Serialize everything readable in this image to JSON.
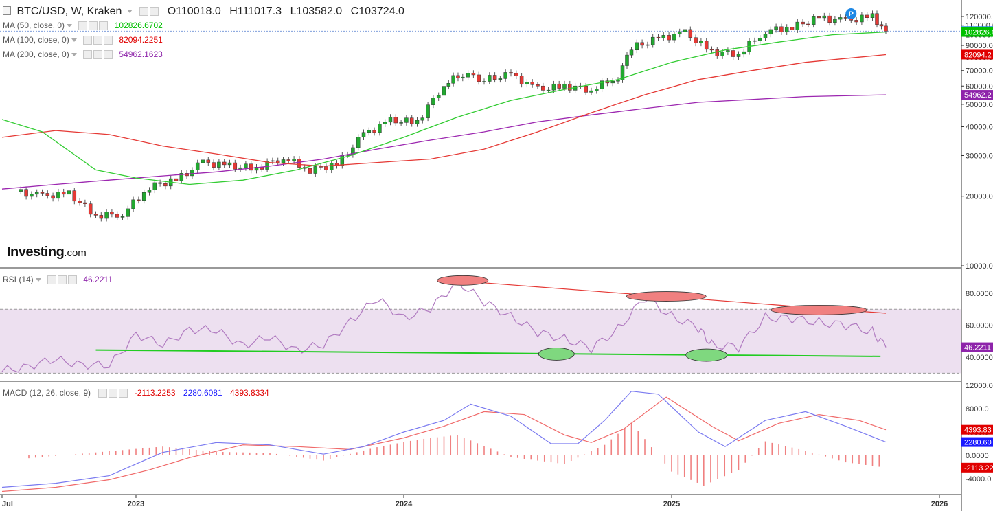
{
  "header": {
    "symbol": "BTC/USD, W, Kraken",
    "open": "O110018.0",
    "high": "H111017.3",
    "low": "L103582.0",
    "close": "C103724.0"
  },
  "indicators": [
    {
      "label": "MA (50, close, 0)",
      "value": "102826.6702",
      "color": "#00c000"
    },
    {
      "label": "MA (100, close, 0)",
      "value": "82094.2251",
      "color": "#e00000"
    },
    {
      "label": "MA (200, close, 0)",
      "value": "54962.1623",
      "color": "#8e24aa"
    }
  ],
  "rsi_header": {
    "label": "RSI (14)",
    "value": "46.2211",
    "color": "#8e24aa"
  },
  "macd_header": {
    "label": "MACD (12, 26, close, 9)",
    "values": [
      {
        "text": "-2113.2253",
        "color": "#e00000"
      },
      {
        "text": "2280.6081",
        "color": "#1a1aff"
      },
      {
        "text": "4393.8334",
        "color": "#e00000"
      }
    ]
  },
  "logo": {
    "main": "Investing",
    "suffix": ".com"
  },
  "price_marker": "P",
  "chart_data": {
    "type": "candlestick",
    "interval": "weekly",
    "x_labels": [
      "Jul",
      "2023",
      "2024",
      "2025",
      "2026"
    ],
    "price_axis": {
      "ticks": [
        10000,
        20000,
        30000,
        40000,
        50000,
        60000,
        70000,
        80000,
        90000,
        100000,
        110000,
        120000
      ],
      "tick_labels": [
        "10000.0",
        "20000.0",
        "30000.0",
        "40000.0",
        "50000.0",
        "60000.0",
        "70000.0",
        "80000.0",
        "90000.0",
        "100000.0",
        "110000.0",
        "120000.0"
      ],
      "scale": "log"
    },
    "price_tags": [
      {
        "text": "103724.0",
        "value": 103724,
        "color": "#1e88e5"
      },
      {
        "text": "102826.6",
        "value": 102826.67,
        "color": "#00c000"
      },
      {
        "text": "82094.2",
        "value": 82094.23,
        "color": "#e00000"
      },
      {
        "text": "54962.2",
        "value": 54962.16,
        "color": "#8e24aa"
      }
    ],
    "price_close_approx": [
      [
        2022.55,
        21000
      ],
      [
        2022.65,
        20000
      ],
      [
        2022.75,
        20500
      ],
      [
        2022.85,
        16500
      ],
      [
        2022.95,
        16800
      ],
      [
        2023.05,
        22000
      ],
      [
        2023.15,
        23500
      ],
      [
        2023.25,
        28000
      ],
      [
        2023.35,
        27000
      ],
      [
        2023.45,
        26500
      ],
      [
        2023.55,
        29500
      ],
      [
        2023.65,
        26000
      ],
      [
        2023.75,
        27500
      ],
      [
        2023.85,
        37000
      ],
      [
        2023.95,
        42500
      ],
      [
        2024.05,
        42000
      ],
      [
        2024.15,
        61000
      ],
      [
        2024.22,
        68000
      ],
      [
        2024.3,
        64000
      ],
      [
        2024.4,
        67000
      ],
      [
        2024.5,
        58000
      ],
      [
        2024.6,
        60000
      ],
      [
        2024.7,
        58000
      ],
      [
        2024.8,
        66000
      ],
      [
        2024.85,
        88000
      ],
      [
        2024.95,
        96000
      ],
      [
        2025.05,
        102000
      ],
      [
        2025.15,
        84000
      ],
      [
        2025.25,
        83000
      ],
      [
        2025.35,
        104000
      ],
      [
        2025.45,
        108000
      ],
      [
        2025.55,
        118000
      ],
      [
        2025.65,
        115000
      ],
      [
        2025.75,
        120000
      ],
      [
        2025.8,
        103724
      ]
    ],
    "ma50": [
      [
        2022.5,
        43000
      ],
      [
        2022.65,
        38000
      ],
      [
        2022.85,
        26000
      ],
      [
        2023.0,
        24000
      ],
      [
        2023.2,
        22500
      ],
      [
        2023.4,
        23500
      ],
      [
        2023.6,
        26000
      ],
      [
        2023.8,
        30000
      ],
      [
        2024.0,
        36000
      ],
      [
        2024.2,
        44000
      ],
      [
        2024.4,
        52000
      ],
      [
        2024.6,
        58000
      ],
      [
        2024.8,
        64000
      ],
      [
        2025.0,
        76000
      ],
      [
        2025.2,
        86000
      ],
      [
        2025.4,
        93000
      ],
      [
        2025.6,
        100000
      ],
      [
        2025.8,
        102826.67
      ]
    ],
    "ma100": [
      [
        2022.5,
        36000
      ],
      [
        2022.7,
        38500
      ],
      [
        2022.9,
        37000
      ],
      [
        2023.1,
        33000
      ],
      [
        2023.3,
        30500
      ],
      [
        2023.5,
        28000
      ],
      [
        2023.7,
        27000
      ],
      [
        2023.9,
        28000
      ],
      [
        2024.1,
        29000
      ],
      [
        2024.3,
        32000
      ],
      [
        2024.5,
        38000
      ],
      [
        2024.7,
        46000
      ],
      [
        2024.9,
        55000
      ],
      [
        2025.1,
        64000
      ],
      [
        2025.3,
        70000
      ],
      [
        2025.5,
        76000
      ],
      [
        2025.8,
        82094.23
      ]
    ],
    "ma200": [
      [
        2022.5,
        21500
      ],
      [
        2022.7,
        22500
      ],
      [
        2022.9,
        23500
      ],
      [
        2023.1,
        24500
      ],
      [
        2023.3,
        25500
      ],
      [
        2023.5,
        27000
      ],
      [
        2023.7,
        29000
      ],
      [
        2023.9,
        32000
      ],
      [
        2024.1,
        35000
      ],
      [
        2024.3,
        38000
      ],
      [
        2024.5,
        42000
      ],
      [
        2024.7,
        45000
      ],
      [
        2024.9,
        48000
      ],
      [
        2025.1,
        51000
      ],
      [
        2025.3,
        52500
      ],
      [
        2025.5,
        54000
      ],
      [
        2025.8,
        54962.16
      ]
    ],
    "rsi": {
      "ticks": [
        40,
        60,
        80
      ],
      "tick_labels": [
        "40.0000",
        "60.0000",
        "80.0000"
      ],
      "range": [
        25,
        95
      ],
      "overbought": 70,
      "oversold": 30,
      "last_label": "46.2211",
      "last": 46.22,
      "values": [
        [
          2022.5,
          31
        ],
        [
          2022.6,
          35
        ],
        [
          2022.7,
          38
        ],
        [
          2022.8,
          36
        ],
        [
          2022.9,
          34
        ],
        [
          2023.0,
          55
        ],
        [
          2023.1,
          47
        ],
        [
          2023.2,
          58
        ],
        [
          2023.3,
          56
        ],
        [
          2023.4,
          48
        ],
        [
          2023.5,
          52
        ],
        [
          2023.6,
          45
        ],
        [
          2023.7,
          47
        ],
        [
          2023.8,
          63
        ],
        [
          2023.9,
          76
        ],
        [
          2024.0,
          65
        ],
        [
          2024.1,
          70
        ],
        [
          2024.2,
          88
        ],
        [
          2024.3,
          74
        ],
        [
          2024.4,
          66
        ],
        [
          2024.5,
          55
        ],
        [
          2024.6,
          52
        ],
        [
          2024.7,
          45
        ],
        [
          2024.8,
          58
        ],
        [
          2024.9,
          77
        ],
        [
          2025.0,
          66
        ],
        [
          2025.1,
          58
        ],
        [
          2025.15,
          48
        ],
        [
          2025.25,
          46
        ],
        [
          2025.35,
          65
        ],
        [
          2025.45,
          64
        ],
        [
          2025.55,
          62
        ],
        [
          2025.65,
          60
        ],
        [
          2025.75,
          56
        ],
        [
          2025.8,
          46.22
        ]
      ],
      "trendlines": [
        {
          "color": "#e53935",
          "from": [
            2024.22,
            87.5
          ],
          "to": [
            2025.8,
            67.5
          ]
        },
        {
          "color": "#22cc22",
          "from": [
            2022.85,
            44.5
          ],
          "to": [
            2025.78,
            40.5
          ]
        }
      ],
      "highlights": [
        {
          "color": "red",
          "at": [
            2024.22,
            88
          ]
        },
        {
          "color": "red",
          "at": [
            2024.98,
            78
          ]
        },
        {
          "color": "red",
          "at": [
            2025.55,
            69.5
          ]
        },
        {
          "color": "green",
          "at": [
            2024.57,
            42
          ]
        },
        {
          "color": "green",
          "at": [
            2025.13,
            41.3
          ]
        }
      ]
    },
    "macd": {
      "ticks": [
        -4000,
        0,
        4000,
        8000,
        12000
      ],
      "tick_labels": [
        "-4000.0",
        "0.0000",
        "4000.0",
        "8000.0",
        "12000.0"
      ],
      "range": [
        -6500,
        12500
      ],
      "tags": [
        {
          "text": "4393.83",
          "value": 4393.83,
          "color": "#e00000"
        },
        {
          "text": "2280.60",
          "value": 2280.61,
          "color": "#1a1aff"
        },
        {
          "text": "-2113.22",
          "value": -2113.23,
          "color": "#e00000"
        }
      ],
      "macd_line": [
        [
          2022.5,
          -5500
        ],
        [
          2022.7,
          -4800
        ],
        [
          2022.9,
          -3500
        ],
        [
          2023.0,
          -1500
        ],
        [
          2023.1,
          500
        ],
        [
          2023.3,
          2200
        ],
        [
          2023.5,
          1800
        ],
        [
          2023.7,
          200
        ],
        [
          2023.85,
          1500
        ],
        [
          2024.0,
          4000
        ],
        [
          2024.15,
          6000
        ],
        [
          2024.25,
          8800
        ],
        [
          2024.4,
          6700
        ],
        [
          2024.55,
          2000
        ],
        [
          2024.65,
          2000
        ],
        [
          2024.75,
          6000
        ],
        [
          2024.85,
          11000
        ],
        [
          2024.95,
          10500
        ],
        [
          2025.1,
          4000
        ],
        [
          2025.2,
          1500
        ],
        [
          2025.35,
          6000
        ],
        [
          2025.5,
          7500
        ],
        [
          2025.65,
          5000
        ],
        [
          2025.8,
          2280.61
        ]
      ],
      "signal_line": [
        [
          2022.5,
          -6200
        ],
        [
          2022.7,
          -5500
        ],
        [
          2022.9,
          -4200
        ],
        [
          2023.05,
          -2500
        ],
        [
          2023.2,
          -400
        ],
        [
          2023.4,
          1800
        ],
        [
          2023.6,
          1500
        ],
        [
          2023.8,
          1000
        ],
        [
          2024.0,
          3000
        ],
        [
          2024.15,
          5000
        ],
        [
          2024.3,
          7500
        ],
        [
          2024.45,
          7000
        ],
        [
          2024.6,
          3500
        ],
        [
          2024.7,
          2200
        ],
        [
          2024.82,
          4500
        ],
        [
          2024.98,
          10000
        ],
        [
          2025.15,
          5000
        ],
        [
          2025.25,
          2500
        ],
        [
          2025.4,
          5500
        ],
        [
          2025.55,
          7000
        ],
        [
          2025.7,
          6000
        ],
        [
          2025.8,
          4393.83
        ]
      ],
      "histogram": [
        [
          2022.6,
          -500
        ],
        [
          2022.9,
          700
        ],
        [
          2023.1,
          1500
        ],
        [
          2023.3,
          600
        ],
        [
          2023.5,
          400
        ],
        [
          2023.7,
          -900
        ],
        [
          2023.9,
          1400
        ],
        [
          2024.05,
          2700
        ],
        [
          2024.2,
          3500
        ],
        [
          2024.4,
          -300
        ],
        [
          2024.6,
          -1500
        ],
        [
          2024.75,
          1800
        ],
        [
          2024.85,
          5600
        ],
        [
          2025.0,
          -2800
        ],
        [
          2025.12,
          -5200
        ],
        [
          2025.25,
          -2500
        ],
        [
          2025.35,
          2400
        ],
        [
          2025.5,
          800
        ],
        [
          2025.65,
          -1200
        ],
        [
          2025.8,
          -2113.23
        ]
      ]
    }
  }
}
